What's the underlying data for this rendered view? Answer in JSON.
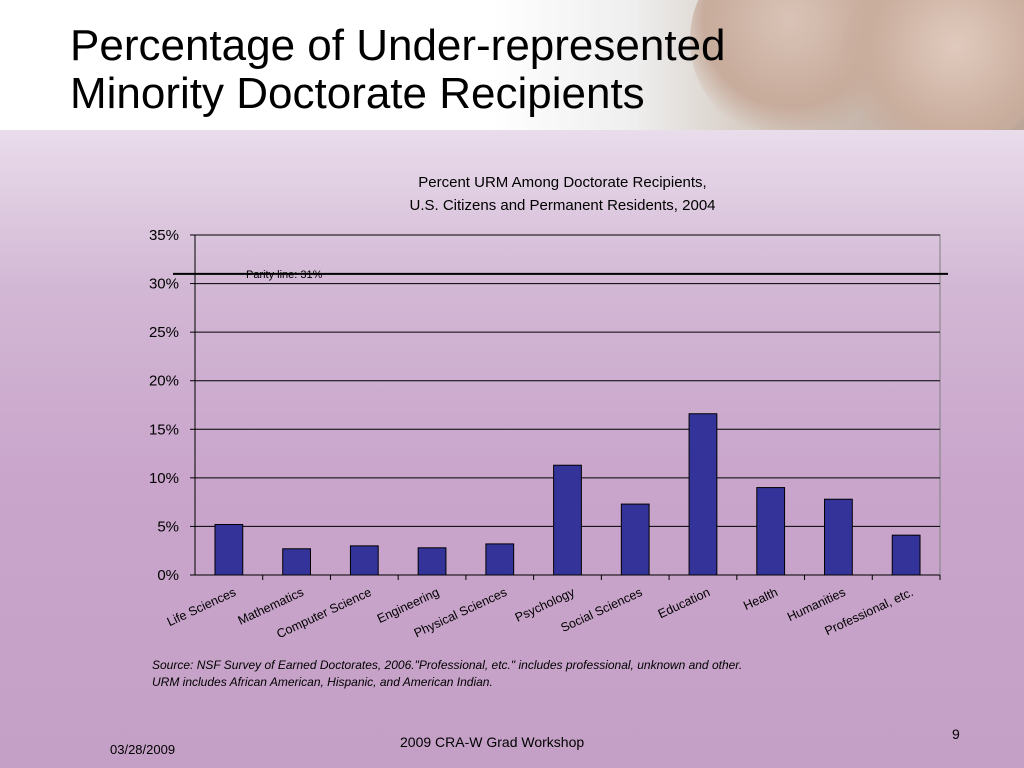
{
  "slide": {
    "title_line1": "Percentage of Under-represented",
    "title_line2": "Minority Doctorate Recipients",
    "source_line1": "Source: NSF Survey of Earned Doctorates, 2006.\"Professional, etc.\" includes professional, unknown and other.",
    "source_line2": "URM includes African American, Hispanic, and American Indian.",
    "footer_date": "03/28/2009",
    "footer_center": "2009 CRA-W Grad Workshop",
    "page_number": "9"
  },
  "colors": {
    "bar_fill": "#333399",
    "bar_stroke": "#000000",
    "gridline": "#000000",
    "parity_line": "#000000"
  },
  "chart_data": {
    "type": "bar",
    "title_line1": "Percent URM Among Doctorate Recipients,",
    "title_line2": "U.S. Citizens and Permanent Residents, 2004",
    "categories": [
      "Life Sciences",
      "Mathematics",
      "Computer Science",
      "Engineering",
      "Physical Sciences",
      "Psychology",
      "Social Sciences",
      "Education",
      "Health",
      "Humanities",
      "Professional, etc."
    ],
    "values": [
      5.2,
      2.7,
      3.0,
      2.8,
      3.2,
      11.3,
      7.3,
      16.6,
      9.0,
      7.8,
      4.1
    ],
    "y_ticks": [
      "0%",
      "5%",
      "10%",
      "15%",
      "20%",
      "25%",
      "30%",
      "35%"
    ],
    "ylim": [
      0,
      35
    ],
    "grid": true,
    "annotations": [
      {
        "text": "Parity line: 31%",
        "y": 31
      }
    ]
  }
}
